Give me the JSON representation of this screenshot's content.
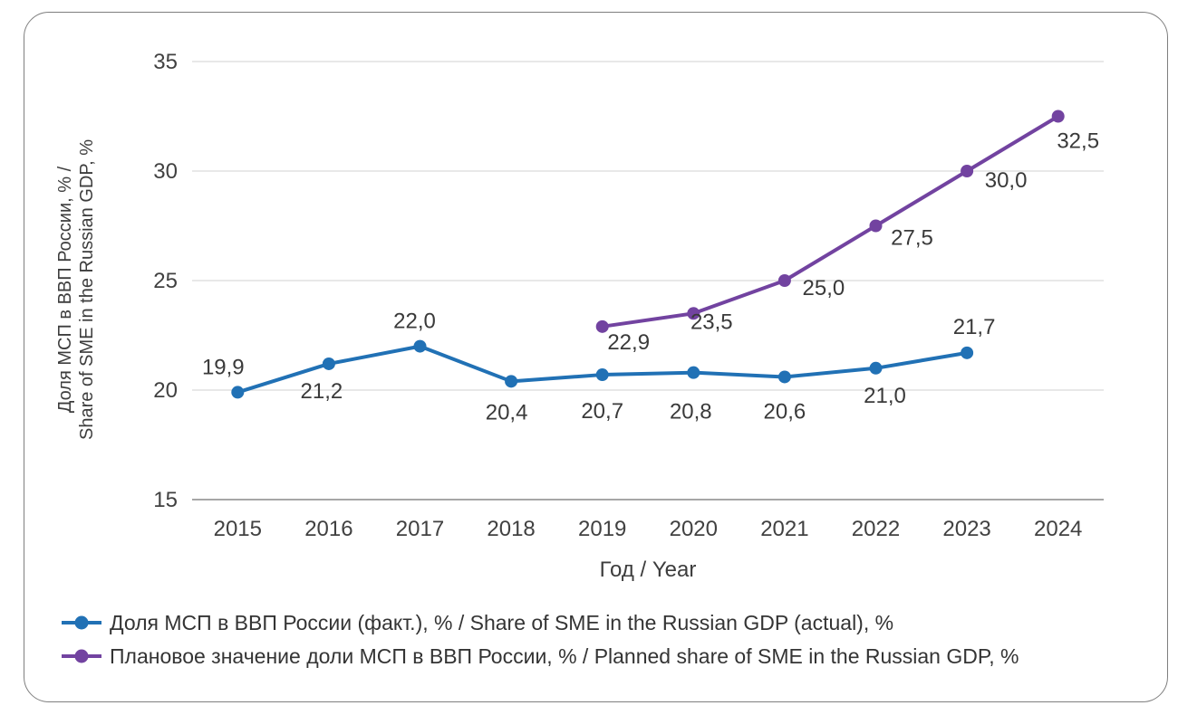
{
  "card": {
    "background": "#ffffff",
    "border_color": "#7f7f7f"
  },
  "chart_data": {
    "type": "line",
    "title": "",
    "categories": [
      "2015",
      "2016",
      "2017",
      "2018",
      "2019",
      "2020",
      "2021",
      "2022",
      "2023",
      "2024"
    ],
    "xlabel": "Год / Year",
    "ylabel": "Доля МСП в ВВП России, % / Share of SME in the Russian GDP, %",
    "ylabel_lines": [
      "Доля МСП в ВВП России, % /",
      "Share of SME in the Russian GDP, %"
    ],
    "ylim": [
      15,
      35
    ],
    "yticks": [
      "15",
      "20",
      "25",
      "30",
      "35"
    ],
    "grid": true,
    "gridline_color": "#d9d9d9",
    "axisline_color": "#a6a6a6",
    "legend_position": "bottom-left",
    "decimal_separator": ",",
    "series": [
      {
        "name": "Доля МСП в ВВП России (факт.), % / Share of SME in the Russian GDP (actual), %",
        "color": "#2171b5",
        "start_index": 0,
        "values": [
          19.9,
          21.2,
          22.0,
          20.4,
          20.7,
          20.8,
          20.6,
          21.0,
          21.7
        ],
        "labels": [
          "19,9",
          "21,2",
          "22,0",
          "20,4",
          "20,7",
          "20,8",
          "20,6",
          "21,0",
          "21,7"
        ],
        "label_offsets": [
          [
            -16,
            -20
          ],
          [
            -8,
            38
          ],
          [
            -6,
            -20
          ],
          [
            -5,
            42
          ],
          [
            0,
            48
          ],
          [
            -3,
            51
          ],
          [
            0,
            46
          ],
          [
            10,
            38
          ],
          [
            8,
            -21
          ]
        ]
      },
      {
        "name": "Плановое значение доли МСП в ВВП России, % / Planned share of SME in the Russian GDP, %",
        "color": "#7243a0",
        "start_index": 4,
        "values": [
          22.9,
          23.5,
          25.0,
          27.5,
          30.0,
          32.5
        ],
        "labels": [
          "22,9",
          "23,5",
          "25,0",
          "27,5",
          "30,0",
          "32,5"
        ],
        "label_offsets": [
          [
            29,
            25
          ],
          [
            20,
            17
          ],
          [
            43,
            16
          ],
          [
            40,
            21
          ],
          [
            43,
            18
          ],
          [
            22,
            35
          ]
        ]
      }
    ]
  }
}
